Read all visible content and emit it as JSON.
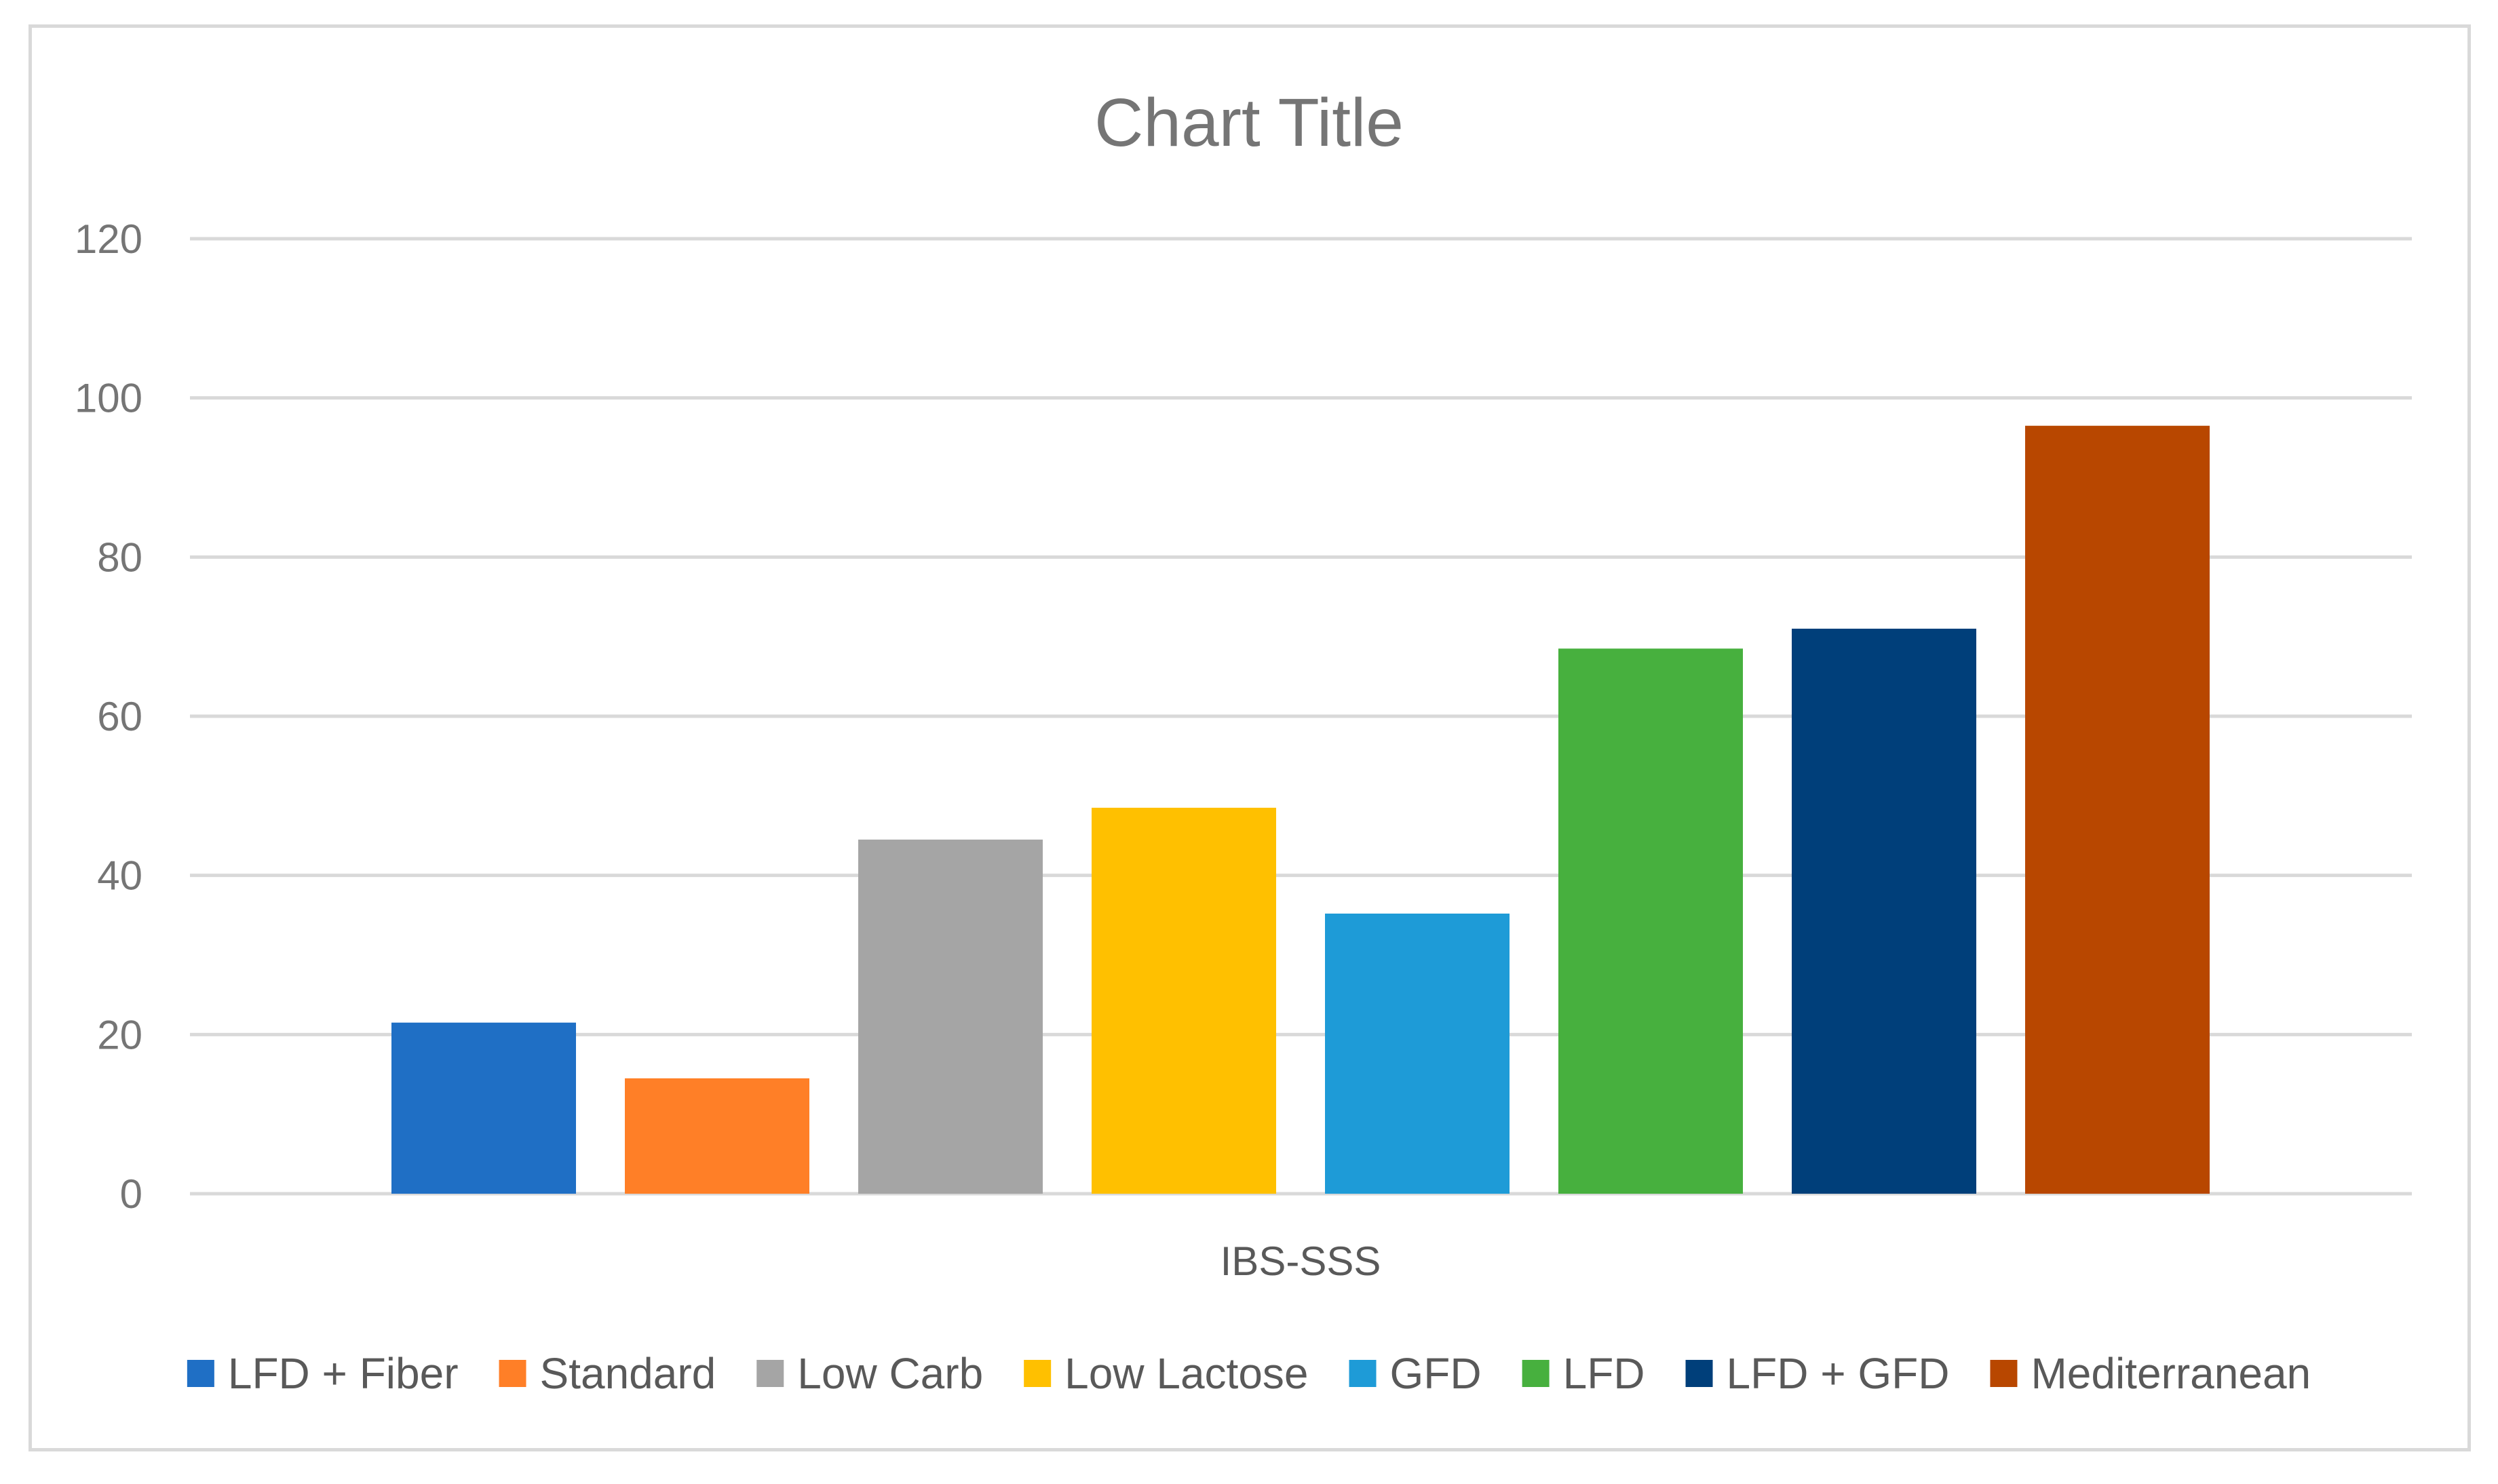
{
  "chart_data": {
    "type": "bar",
    "title": "Chart Title",
    "categories": [
      "IBS-SSS"
    ],
    "xlabel": "",
    "ylabel": "",
    "ylim": [
      0,
      120
    ],
    "yticks": [
      0,
      20,
      40,
      60,
      80,
      100,
      120
    ],
    "grid": true,
    "legend_position": "bottom",
    "series": [
      {
        "name": "LFD + Fiber",
        "values": [
          21.5
        ],
        "color": "#1f6fc5"
      },
      {
        "name": "Standard",
        "values": [
          14.5
        ],
        "color": "#ff7f27"
      },
      {
        "name": "Low Carb",
        "values": [
          44.5
        ],
        "color": "#a5a5a5"
      },
      {
        "name": "Low Lactose",
        "values": [
          48.5
        ],
        "color": "#ffc000"
      },
      {
        "name": "GFD",
        "values": [
          35.2
        ],
        "color": "#1e9bd7"
      },
      {
        "name": "LFD",
        "values": [
          68.5
        ],
        "color": "#47b03e"
      },
      {
        "name": "LFD + GFD",
        "values": [
          71.0
        ],
        "color": "#003f7a"
      },
      {
        "name": "Mediterranean",
        "values": [
          96.5
        ],
        "color": "#b84700"
      }
    ]
  }
}
